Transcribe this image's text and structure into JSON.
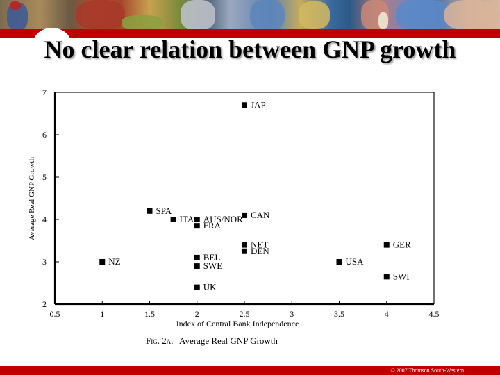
{
  "slide": {
    "title": "No clear relation between GNP growth",
    "copyright": "© 2007 Thomson South-Western",
    "colors": {
      "accent_red": "#c00000",
      "text": "#000000",
      "background": "#ffffff"
    }
  },
  "figure": {
    "caption_prefix": "Fig. 2a.",
    "caption_text": "Average Real GNP Growth"
  },
  "chart_data": {
    "type": "scatter",
    "title": "Fig. 2a. Average Real GNP Growth",
    "xlabel": "Index of Central Bank Independence",
    "ylabel": "Average Real GNP Growth",
    "xlim": [
      0.5,
      4.5
    ],
    "ylim": [
      2,
      7
    ],
    "x_ticks": [
      "0.5",
      "1",
      "1.5",
      "2",
      "2.5",
      "3",
      "3.5",
      "4",
      "4.5"
    ],
    "y_ticks": [
      "2",
      "3",
      "4",
      "5",
      "6",
      "7"
    ],
    "grid": false,
    "legend": "none",
    "points": [
      {
        "label": "JAP",
        "x": 2.5,
        "y": 6.7
      },
      {
        "label": "SPA",
        "x": 1.5,
        "y": 4.2
      },
      {
        "label": "ITA",
        "x": 1.75,
        "y": 4.0
      },
      {
        "label": "AUS/NOR",
        "x": 2.0,
        "y": 4.0
      },
      {
        "label": "FRA",
        "x": 2.0,
        "y": 3.85
      },
      {
        "label": "CAN",
        "x": 2.5,
        "y": 4.1
      },
      {
        "label": "NET",
        "x": 2.5,
        "y": 3.4
      },
      {
        "label": "DEN",
        "x": 2.5,
        "y": 3.25
      },
      {
        "label": "BEL",
        "x": 2.0,
        "y": 3.1
      },
      {
        "label": "SWE",
        "x": 2.0,
        "y": 2.9
      },
      {
        "label": "UK",
        "x": 2.0,
        "y": 2.4
      },
      {
        "label": "NZ",
        "x": 1.0,
        "y": 3.0
      },
      {
        "label": "USA",
        "x": 3.5,
        "y": 3.0
      },
      {
        "label": "GER",
        "x": 4.0,
        "y": 3.4
      },
      {
        "label": "SWI",
        "x": 4.0,
        "y": 2.65
      }
    ]
  }
}
